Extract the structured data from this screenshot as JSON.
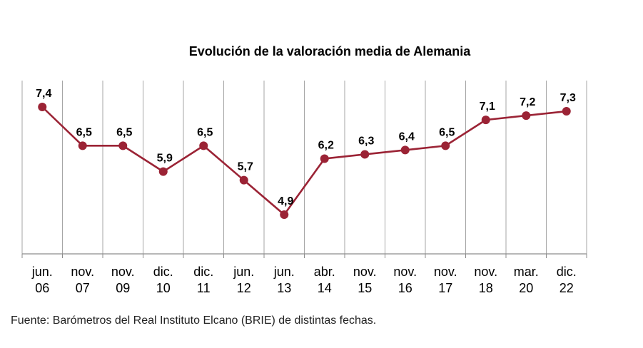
{
  "chart_data": {
    "type": "line",
    "title": "Evolución de la valoración media de Alemania",
    "categories": [
      [
        "jun.",
        "06"
      ],
      [
        "nov.",
        "07"
      ],
      [
        "nov.",
        "09"
      ],
      [
        "dic.",
        "10"
      ],
      [
        "dic.",
        "11"
      ],
      [
        "jun.",
        "12"
      ],
      [
        "jun.",
        "13"
      ],
      [
        "abr.",
        "14"
      ],
      [
        "nov.",
        "15"
      ],
      [
        "nov.",
        "16"
      ],
      [
        "nov.",
        "17"
      ],
      [
        "nov.",
        "18"
      ],
      [
        "mar.",
        "20"
      ],
      [
        "dic.",
        "22"
      ]
    ],
    "values": [
      7.4,
      6.5,
      6.5,
      5.9,
      6.5,
      5.7,
      4.9,
      6.2,
      6.3,
      6.4,
      6.5,
      7.1,
      7.2,
      7.3
    ],
    "value_labels": [
      "7,4",
      "6,5",
      "6,5",
      "5,9",
      "6,5",
      "5,7",
      "4,9",
      "6,2",
      "6,3",
      "6,4",
      "6,5",
      "7,1",
      "7,2",
      "7,3"
    ],
    "ylim": [
      4.0,
      7.8
    ],
    "grid": "vertical",
    "line_color": "#9b2335",
    "grid_color": "#a6a6a6",
    "xlabel": "",
    "ylabel": ""
  },
  "source_note": "Fuente: Barómetros del Real Instituto Elcano (BRIE) de distintas fechas."
}
